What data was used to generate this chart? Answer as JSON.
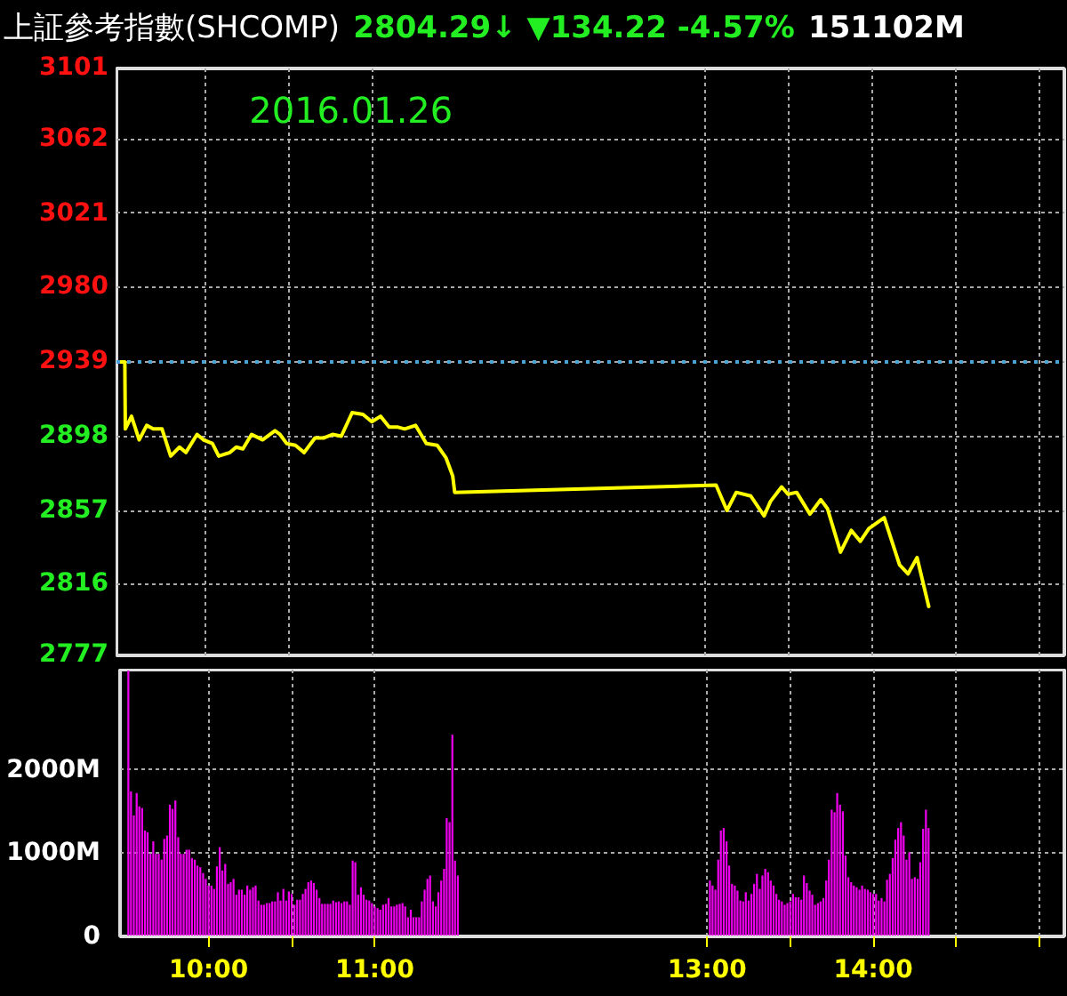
{
  "chart_data": [
    {
      "type": "line",
      "title": "上証參考指數(SHCOMP)",
      "subtitle": "2804.29↓ ▼134.22 -4.57%",
      "annotations": [
        "2016.01.26",
        "151102M"
      ],
      "xlim": [
        9.467,
        15.15
      ],
      "xticks": [
        10,
        10.5,
        11,
        13,
        13.5,
        14,
        14.5,
        15
      ],
      "ylim": [
        2777,
        3101
      ],
      "yticks": [
        3101,
        3062,
        3021,
        2980,
        2939,
        2898,
        2857,
        2816,
        2777
      ],
      "grid": true,
      "tick_labels": "y",
      "ref_lines": [
        {
          "axis": "y",
          "value": 2939,
          "color": "#4aa3d9",
          "line_style": "dotted"
        }
      ],
      "series": [
        {
          "color": "#ffff00",
          "x": [
            9.467,
            9.517,
            9.52,
            9.557,
            9.603,
            9.648,
            9.687,
            9.74,
            9.792,
            9.845,
            9.883,
            9.95,
            9.988,
            10.042,
            10.08,
            10.147,
            10.185,
            10.225,
            10.277,
            10.343,
            10.417,
            10.447,
            10.487,
            10.54,
            10.592,
            10.657,
            10.708,
            10.762,
            10.815,
            10.88,
            10.945,
            10.998,
            11.05,
            11.102,
            11.155,
            11.195,
            11.26,
            11.325,
            11.39,
            11.443,
            11.483,
            11.495,
            13.062,
            13.127,
            13.183,
            13.27,
            13.35,
            13.388,
            13.455,
            13.493,
            13.545,
            13.625,
            13.69,
            13.73,
            13.808,
            13.873,
            13.927,
            13.978,
            14.07,
            14.162,
            14.213,
            14.267,
            14.337
          ],
          "values": [
            2939,
            2939,
            2902,
            2909,
            2896,
            2904,
            2902,
            2902,
            2887,
            2892,
            2889,
            2899,
            2896,
            2894,
            2887,
            2889,
            2892,
            2891,
            2899,
            2896,
            2901,
            2899,
            2894,
            2893,
            2889,
            2897,
            2897,
            2899,
            2898,
            2911,
            2910,
            2906,
            2909,
            2903,
            2903,
            2902,
            2904,
            2894,
            2893,
            2886,
            2876,
            2867,
            2871,
            2857,
            2867,
            2865,
            2854,
            2862,
            2870,
            2866,
            2867,
            2855,
            2863,
            2858,
            2834,
            2846,
            2840,
            2847,
            2853,
            2827,
            2822,
            2831,
            2804
          ]
        }
      ]
    },
    {
      "type": "bar",
      "color": "#ee00ee",
      "xlim": [
        9.467,
        15.15
      ],
      "xticks": [
        {
          "value": 10,
          "label": "10:00"
        },
        {
          "value": 10.5,
          "label": null
        },
        {
          "value": 11,
          "label": "11:00"
        },
        {
          "value": 13,
          "label": "13:00"
        },
        {
          "value": 13.5,
          "label": null
        },
        {
          "value": 14,
          "label": "14:00"
        },
        {
          "value": 14.5,
          "label": null
        },
        {
          "value": 15,
          "label": null
        }
      ],
      "ylim": [
        0,
        3200
      ],
      "yticks": [
        0,
        {
          "value": 1000,
          "label": "1000M"
        },
        {
          "value": 2000,
          "label": "2000M"
        }
      ],
      "grid": true,
      "x": [
        9.517,
        9.533,
        9.55,
        9.567,
        9.583,
        9.6,
        9.617,
        9.633,
        9.65,
        9.667,
        9.683,
        9.7,
        9.717,
        9.733,
        9.75,
        9.767,
        9.783,
        9.8,
        9.817,
        9.833,
        9.85,
        9.867,
        9.883,
        9.9,
        9.917,
        9.933,
        9.95,
        9.967,
        9.983,
        10,
        10.017,
        10.033,
        10.05,
        10.067,
        10.083,
        10.1,
        10.117,
        10.133,
        10.15,
        10.167,
        10.183,
        10.2,
        10.217,
        10.233,
        10.25,
        10.267,
        10.283,
        10.3,
        10.317,
        10.333,
        10.35,
        10.367,
        10.383,
        10.4,
        10.417,
        10.433,
        10.45,
        10.467,
        10.483,
        10.5,
        10.517,
        10.533,
        10.55,
        10.567,
        10.583,
        10.6,
        10.617,
        10.633,
        10.65,
        10.667,
        10.683,
        10.7,
        10.717,
        10.733,
        10.75,
        10.767,
        10.783,
        10.8,
        10.817,
        10.833,
        10.85,
        10.867,
        10.883,
        10.9,
        10.917,
        10.933,
        10.95,
        10.967,
        10.983,
        11,
        11.017,
        11.033,
        11.05,
        11.067,
        11.083,
        11.1,
        11.117,
        11.133,
        11.15,
        11.167,
        11.183,
        11.2,
        11.217,
        11.233,
        11.25,
        11.267,
        11.283,
        11.3,
        11.317,
        11.333,
        11.35,
        11.367,
        11.383,
        11.4,
        11.417,
        11.433,
        11.45,
        11.467,
        11.483,
        11.5,
        13.017,
        13.033,
        13.05,
        13.067,
        13.083,
        13.1,
        13.117,
        13.133,
        13.15,
        13.167,
        13.183,
        13.2,
        13.217,
        13.233,
        13.25,
        13.267,
        13.283,
        13.3,
        13.317,
        13.333,
        13.35,
        13.367,
        13.383,
        13.4,
        13.417,
        13.433,
        13.45,
        13.467,
        13.483,
        13.5,
        13.517,
        13.533,
        13.55,
        13.567,
        13.583,
        13.6,
        13.617,
        13.633,
        13.65,
        13.667,
        13.683,
        13.7,
        13.717,
        13.733,
        13.75,
        13.767,
        13.783,
        13.8,
        13.817,
        13.833,
        13.85,
        13.867,
        13.883,
        13.9,
        13.917,
        13.933,
        13.95,
        13.967,
        13.983,
        14,
        14.017,
        14.033,
        14.05,
        14.067,
        14.083,
        14.1,
        14.117,
        14.133,
        14.15,
        14.167,
        14.183,
        14.2,
        14.217,
        14.233,
        14.25,
        14.267,
        14.283,
        14.3,
        14.317,
        14.333
      ],
      "values": [
        3190,
        1740,
        1450,
        1720,
        1560,
        1540,
        1270,
        1250,
        990,
        1140,
        990,
        990,
        920,
        1170,
        1210,
        1580,
        1530,
        1630,
        1190,
        990,
        990,
        1040,
        1040,
        940,
        920,
        850,
        830,
        760,
        690,
        610,
        610,
        570,
        840,
        1070,
        790,
        870,
        630,
        650,
        690,
        500,
        560,
        560,
        500,
        610,
        560,
        590,
        610,
        430,
        380,
        380,
        400,
        400,
        420,
        420,
        530,
        430,
        570,
        430,
        540,
        510,
        380,
        440,
        440,
        510,
        570,
        650,
        670,
        640,
        560,
        460,
        390,
        390,
        390,
        390,
        430,
        410,
        420,
        400,
        420,
        420,
        380,
        910,
        890,
        500,
        590,
        500,
        440,
        430,
        400,
        360,
        340,
        320,
        380,
        390,
        460,
        360,
        360,
        380,
        390,
        400,
        360,
        230,
        320,
        230,
        230,
        230,
        420,
        560,
        690,
        730,
        420,
        360,
        530,
        670,
        810,
        1420,
        1370,
        2420,
        910,
        730,
        670,
        610,
        560,
        920,
        1270,
        1300,
        1140,
        850,
        630,
        610,
        550,
        430,
        420,
        530,
        430,
        510,
        630,
        750,
        570,
        730,
        810,
        770,
        670,
        610,
        510,
        440,
        420,
        380,
        400,
        420,
        510,
        470,
        470,
        440,
        730,
        640,
        550,
        500,
        380,
        400,
        420,
        460,
        670,
        920,
        1520,
        1490,
        1720,
        1580,
        1500,
        970,
        710,
        650,
        610,
        590,
        560,
        610,
        570,
        560,
        530,
        510,
        510,
        430,
        460,
        420,
        680,
        750,
        940,
        1160,
        1300,
        1370,
        1210,
        920,
        1010,
        690,
        710,
        690,
        890,
        1290,
        1520,
        1300
      ]
    }
  ]
}
